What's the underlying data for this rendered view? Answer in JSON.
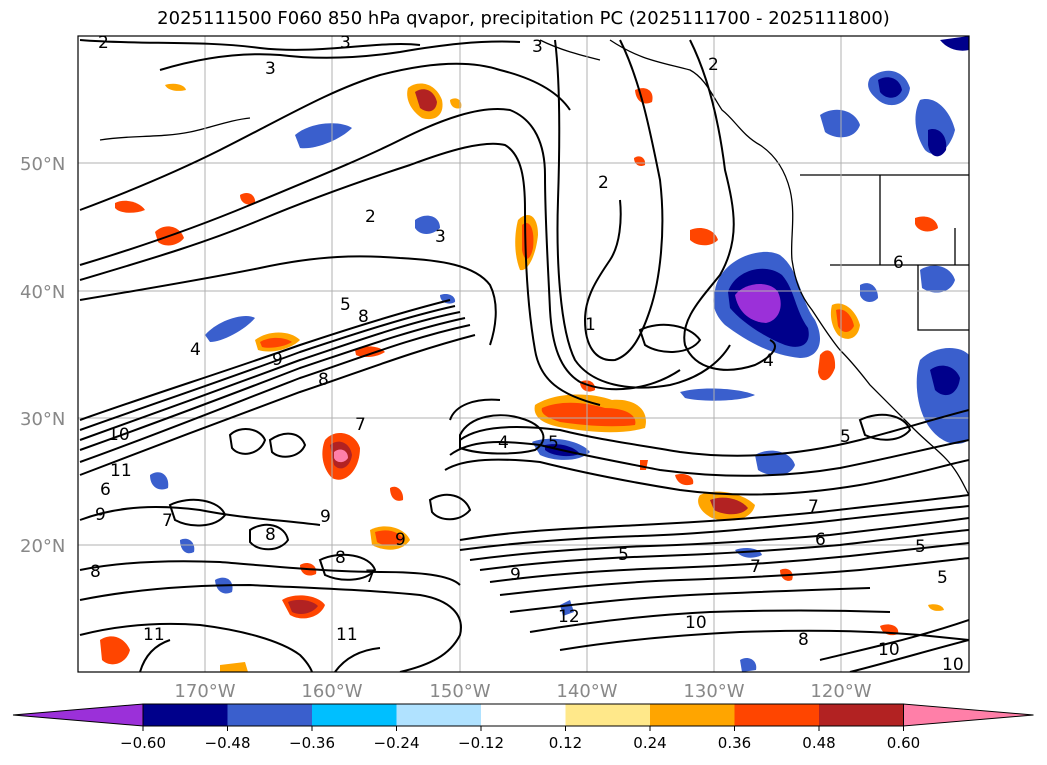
{
  "title": "2025111500 F060 850 hPa qvapor, precipitation PC (2025111700 - 2025111800)",
  "latitude_labels": [
    "50°N",
    "40°N",
    "30°N",
    "20°N"
  ],
  "longitude_labels": [
    "170°W",
    "160°W",
    "150°W",
    "140°W",
    "130°W",
    "120°W"
  ],
  "contour_labels": [
    "2",
    "3",
    "3",
    "3",
    "2",
    "3",
    "2",
    "1",
    "4",
    "5",
    "8",
    "9",
    "8",
    "10",
    "11",
    "7",
    "6",
    "9",
    "7",
    "9",
    "8",
    "8",
    "9",
    "7",
    "4",
    "5",
    "5",
    "6",
    "7",
    "9",
    "12",
    "10",
    "8",
    "10",
    "11",
    "5",
    "5",
    "6",
    "7",
    "2",
    "8",
    "11",
    "10",
    "5",
    "4"
  ],
  "colorbar": {
    "tick_labels": [
      "−0.60",
      "−0.48",
      "−0.36",
      "−0.24",
      "−0.12",
      "0.12",
      "0.24",
      "0.36",
      "0.48",
      "0.60"
    ],
    "colors": [
      "#9b30d9",
      "#00008b",
      "#3a5fcd",
      "#00bfff",
      "#b0e2ff",
      "#ffffff",
      "#ffe88a",
      "#ffa500",
      "#ff4500",
      "#b22222",
      "#ff7fa8"
    ]
  }
}
